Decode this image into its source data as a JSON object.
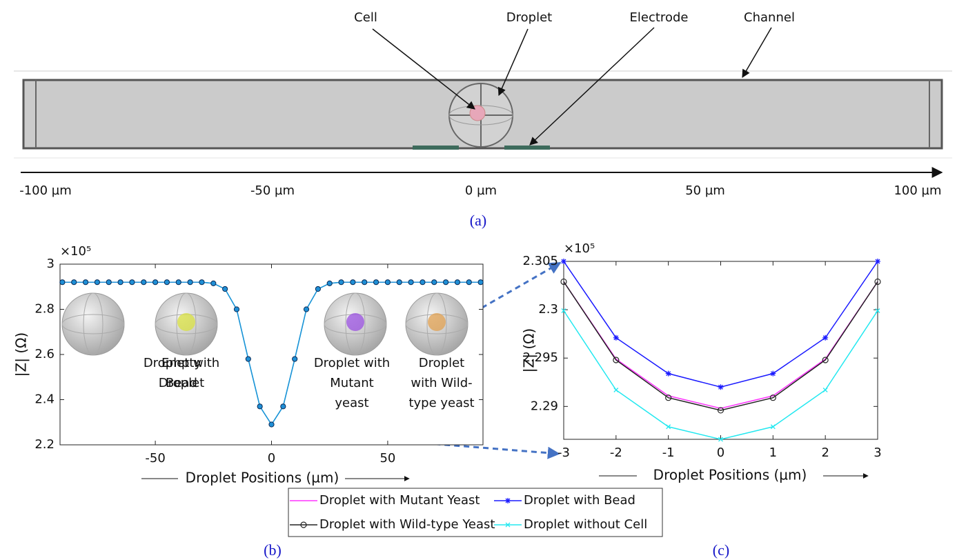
{
  "diagram": {
    "labels": {
      "cell": "Cell",
      "droplet": "Droplet",
      "electrode": "Electrode",
      "channel": "Channel"
    },
    "axis_labels": [
      "-100 µm",
      "-50 µm",
      "0 µm",
      "50 µm",
      "100 µm"
    ],
    "caption": "(a)"
  },
  "chart_data": [
    {
      "type": "line",
      "caption": "(b)",
      "ylabel": "|Z| (Ω)",
      "xlabel": "Droplet Positions (µm)",
      "y_multiplier": "×10⁵",
      "xlim": [
        -91,
        91
      ],
      "xticks": [
        -50,
        0,
        50
      ],
      "ylim": [
        2.2,
        3
      ],
      "yticks": [
        2.2,
        2.4,
        2.6,
        2.8,
        3
      ],
      "x": [
        -90,
        -85,
        -80,
        -75,
        -70,
        -65,
        -60,
        -55,
        -50,
        -45,
        -40,
        -35,
        -30,
        -25,
        -20,
        -15,
        -10,
        -5,
        0,
        5,
        10,
        15,
        20,
        25,
        30,
        35,
        40,
        45,
        50,
        55,
        60,
        65,
        70,
        75,
        80,
        85,
        90
      ],
      "series": [
        {
          "name": "Droplet without Cell",
          "color": "#00d8e8",
          "marker": "none",
          "values": [
            2.92,
            2.92,
            2.92,
            2.92,
            2.92,
            2.92,
            2.92,
            2.92,
            2.92,
            2.92,
            2.92,
            2.92,
            2.92,
            2.915,
            2.89,
            2.8,
            2.58,
            2.37,
            2.29,
            2.37,
            2.58,
            2.8,
            2.89,
            2.915,
            2.92,
            2.92,
            2.92,
            2.92,
            2.92,
            2.92,
            2.92,
            2.92,
            2.92,
            2.92,
            2.92,
            2.92,
            2.92
          ]
        },
        {
          "name": "Droplet with Bead",
          "color": "#1f8fd6",
          "marker": "filled-circle",
          "values": [
            2.92,
            2.92,
            2.92,
            2.92,
            2.92,
            2.92,
            2.92,
            2.92,
            2.92,
            2.92,
            2.92,
            2.92,
            2.92,
            2.915,
            2.89,
            2.8,
            2.58,
            2.37,
            2.29,
            2.37,
            2.58,
            2.8,
            2.89,
            2.915,
            2.92,
            2.92,
            2.92,
            2.92,
            2.92,
            2.92,
            2.92,
            2.92,
            2.92,
            2.92,
            2.92,
            2.92,
            2.92
          ]
        }
      ],
      "annotations": [
        {
          "lines": [
            "Empty",
            "Droplet"
          ]
        },
        {
          "lines": [
            "Droplet with",
            "Bead"
          ],
          "color": "#d8e040"
        },
        {
          "lines": [
            "Droplet with",
            "Mutant",
            "yeast"
          ],
          "color": "#9a50e0"
        },
        {
          "lines": [
            "Droplet",
            "with Wild-",
            "type yeast"
          ],
          "color": "#e0a050"
        }
      ]
    },
    {
      "type": "line",
      "caption": "(c)",
      "ylabel": "|Z| (Ω)",
      "xlabel": "Droplet Positions (µm)",
      "y_multiplier": "×10⁵",
      "xlim": [
        -3,
        3
      ],
      "xticks": [
        -3,
        -2,
        -1,
        0,
        1,
        2,
        3
      ],
      "ylim": [
        2.2866,
        2.305
      ],
      "yticks": [
        2.29,
        2.295,
        2.3,
        2.305
      ],
      "x": [
        -3,
        -2,
        -1,
        0,
        1,
        2,
        3
      ],
      "legend": "bottom",
      "series": [
        {
          "name": "Droplet with Mutant Yeast",
          "color": "#ff33ff",
          "marker": "none",
          "values": [
            2.3029,
            2.2949,
            2.2911,
            2.2898,
            2.2911,
            2.2949,
            2.3029
          ]
        },
        {
          "name": "Droplet with Bead",
          "color": "#1a1aff",
          "marker": "star",
          "values": [
            2.305,
            2.2971,
            2.2934,
            2.292,
            2.2934,
            2.2971,
            2.305
          ]
        },
        {
          "name": "Droplet with Wild-type Yeast",
          "color": "#222222",
          "marker": "circle",
          "values": [
            2.3029,
            2.2948,
            2.2909,
            2.2896,
            2.2909,
            2.2948,
            2.3029
          ]
        },
        {
          "name": "Droplet without Cell",
          "color": "#22e8f0",
          "marker": "x",
          "values": [
            2.2999,
            2.2917,
            2.2879,
            2.2866,
            2.2879,
            2.2917,
            2.2999
          ]
        }
      ]
    }
  ]
}
